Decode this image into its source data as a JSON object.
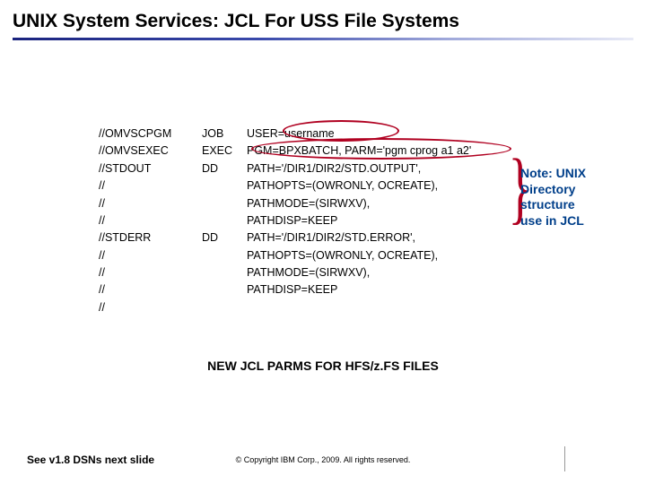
{
  "title": "UNIX System Services: JCL For USS File Systems",
  "jcl": {
    "rows": [
      {
        "c1": "//OMVSCPGM",
        "c2": "JOB",
        "c3": "USER=username"
      },
      {
        "c1": "//OMVSEXEC",
        "c2": "EXEC",
        "c3": "PGM=BPXBATCH, PARM='pgm cprog a1 a2'"
      },
      {
        "c1": "//STDOUT",
        "c2": "DD",
        "c3": "PATH='/DIR1/DIR2/STD.OUTPUT',"
      },
      {
        "c1": "//",
        "c2": "",
        "c3": "PATHOPTS=(OWRONLY, OCREATE),"
      },
      {
        "c1": "//",
        "c2": "",
        "c3": "PATHMODE=(SIRWXV),"
      },
      {
        "c1": "//",
        "c2": "",
        "c3": "PATHDISP=KEEP"
      },
      {
        "c1": "//STDERR",
        "c2": "DD",
        "c3": "PATH='/DIR1/DIR2/STD.ERROR',"
      },
      {
        "c1": "//",
        "c2": "",
        "c3": "PATHOPTS=(OWRONLY, OCREATE),"
      },
      {
        "c1": "//",
        "c2": "",
        "c3": "PATHMODE=(SIRWXV),"
      },
      {
        "c1": "//",
        "c2": "",
        "c3": "PATHDISP=KEEP"
      },
      {
        "c1": "//",
        "c2": "",
        "c3": ""
      }
    ]
  },
  "annotation": {
    "line1": "Note: UNIX",
    "line2": "Directory",
    "line3": "structure",
    "line4": "use in JCL",
    "color": "#003f8a",
    "brace_color": "#b00020"
  },
  "ellipse_color": "#b00020",
  "subtitle": "NEW JCL PARMS FOR HFS/z.FS FILES",
  "footer_left": "See v1.8 DSNs next slide",
  "footer_center": "© Copyright IBM Corp., 2009. All rights reserved."
}
